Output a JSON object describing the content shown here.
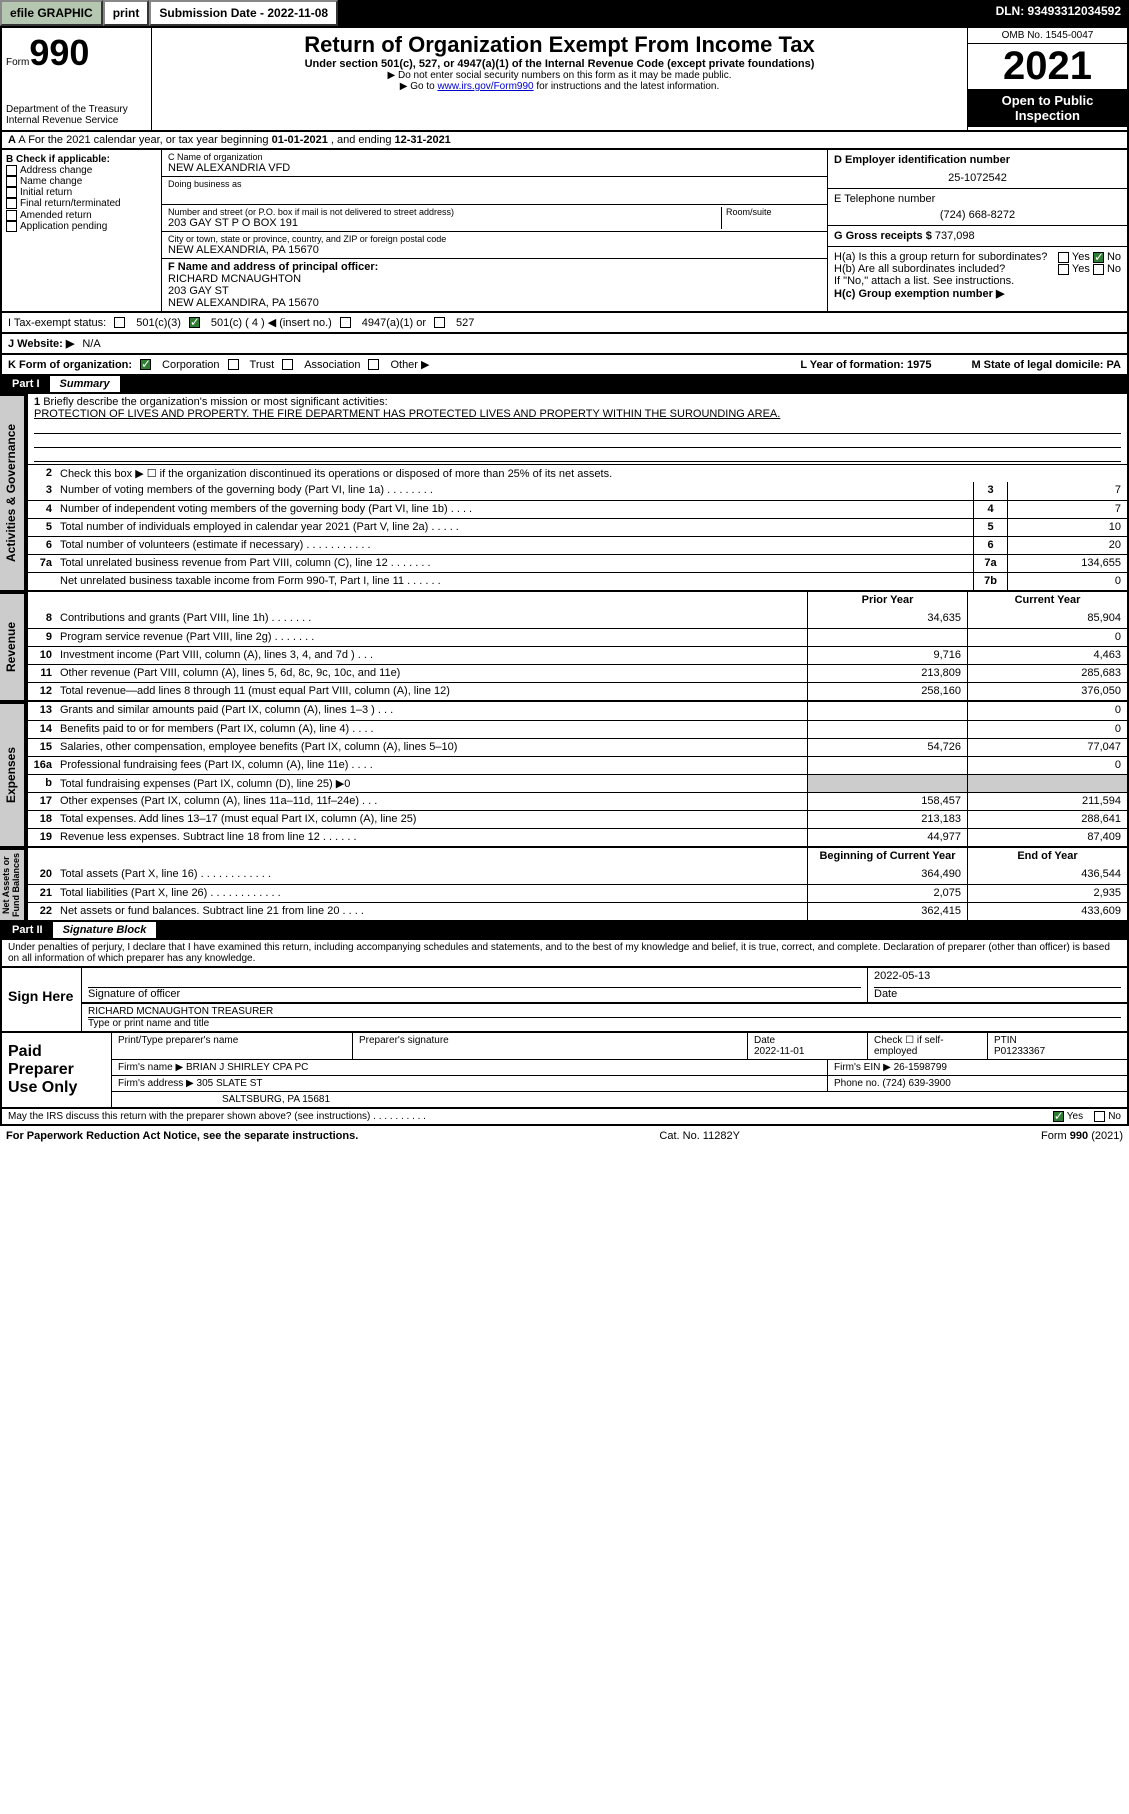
{
  "topbar": {
    "efile_btn": "efile GRAPHIC",
    "print_btn": "print",
    "subdate": "Submission Date - 2022-11-08",
    "dln": "DLN: 93493312034592"
  },
  "header": {
    "form_word": "Form",
    "form_num": "990",
    "dept": "Department of the Treasury\nInternal Revenue Service",
    "title": "Return of Organization Exempt From Income Tax",
    "sub1": "Under section 501(c), 527, or 4947(a)(1) of the Internal Revenue Code (except private foundations)",
    "sub2": "▶ Do not enter social security numbers on this form as it may be made public.",
    "sub3_pre": "▶ Go to ",
    "sub3_link": "www.irs.gov/Form990",
    "sub3_post": " for instructions and the latest information.",
    "omb": "OMB No. 1545-0047",
    "year": "2021",
    "open": "Open to Public Inspection"
  },
  "rowA": {
    "text_pre": "A For the 2021 calendar year, or tax year beginning ",
    "begin": "01-01-2021",
    "mid": "   , and ending ",
    "end": "12-31-2021"
  },
  "B": {
    "hdr": "B Check if applicable:",
    "opts": [
      "Address change",
      "Name change",
      "Initial return",
      "Final return/terminated",
      "Amended return",
      "Application pending"
    ]
  },
  "C": {
    "name_lbl": "C Name of organization",
    "name": "NEW ALEXANDRIA VFD",
    "dba_lbl": "Doing business as",
    "dba": "",
    "addr_lbl": "Number and street (or P.O. box if mail is not delivered to street address)",
    "room_lbl": "Room/suite",
    "addr": "203 GAY ST P O BOX 191",
    "city_lbl": "City or town, state or province, country, and ZIP or foreign postal code",
    "city": "NEW ALEXANDRIA, PA  15670",
    "F_lbl": "F Name and address of principal officer:",
    "F_name": "RICHARD MCNAUGHTON",
    "F_addr1": "203 GAY ST",
    "F_addr2": "NEW ALEXANDIRA, PA  15670"
  },
  "D": {
    "ein_lbl": "D Employer identification number",
    "ein": "25-1072542",
    "tel_lbl": "E Telephone number",
    "tel": "(724) 668-8272",
    "gross_lbl": "G Gross receipts $",
    "gross": "737,098",
    "Ha": "H(a)  Is this a group return for subordinates?",
    "Hb": "H(b)  Are all subordinates included?",
    "Hb_note": "If \"No,\" attach a list. See instructions.",
    "Hc": "H(c)  Group exemption number ▶"
  },
  "I": {
    "lbl": "I   Tax-exempt status:",
    "c3": "501(c)(3)",
    "c": "501(c) ( 4 ) ◀ (insert no.)",
    "a1": "4947(a)(1) or",
    "s527": "527"
  },
  "J": {
    "lbl": "J   Website: ▶",
    "val": "N/A"
  },
  "K": {
    "lbl": "K Form of organization:",
    "opts": [
      "Corporation",
      "Trust",
      "Association",
      "Other ▶"
    ],
    "L": "L Year of formation: 1975",
    "M": "M State of legal domicile: PA"
  },
  "partI": {
    "part": "Part I",
    "title": "Summary"
  },
  "gov": {
    "l1": "Briefly describe the organization's mission or most significant activities:",
    "mission": "PROTECTION OF LIVES AND PROPERTY. THE FIRE DEPARTMENT HAS PROTECTED LIVES AND PROPERTY WITHIN THE SUROUNDING AREA.",
    "l2": "Check this box ▶ ☐  if the organization discontinued its operations or disposed of more than 25% of its net assets.",
    "rows": [
      {
        "n": "3",
        "t": "Number of voting members of the governing body (Part VI, line 1a)  .    .    .    .    .    .    .    .",
        "box": "3",
        "v": "7"
      },
      {
        "n": "4",
        "t": "Number of independent voting members of the governing body (Part VI, line 1b)    .    .    .    .",
        "box": "4",
        "v": "7"
      },
      {
        "n": "5",
        "t": "Total number of individuals employed in calendar year 2021 (Part V, line 2a)   .    .    .    .    .",
        "box": "5",
        "v": "10"
      },
      {
        "n": "6",
        "t": "Total number of volunteers (estimate if necessary)   .    .    .    .    .    .    .    .    .    .    .",
        "box": "6",
        "v": "20"
      },
      {
        "n": "7a",
        "t": "Total unrelated business revenue from Part VIII, column (C), line 12   .    .    .    .    .    .    .",
        "box": "7a",
        "v": "134,655"
      },
      {
        "n": "",
        "t": "Net unrelated business taxable income from Form 990-T, Part I, line 11   .    .    .    .    .    .",
        "box": "7b",
        "v": "0"
      }
    ]
  },
  "rev": {
    "hdr_prior": "Prior Year",
    "hdr_curr": "Current Year",
    "rows": [
      {
        "n": "8",
        "t": "Contributions and grants (Part VIII, line 1h)    .    .    .    .    .    .    .",
        "p": "34,635",
        "c": "85,904"
      },
      {
        "n": "9",
        "t": "Program service revenue (Part VIII, line 2g)    .    .    .    .    .    .    .",
        "p": "",
        "c": "0"
      },
      {
        "n": "10",
        "t": "Investment income (Part VIII, column (A), lines 3, 4, and 7d )   .    .    .",
        "p": "9,716",
        "c": "4,463"
      },
      {
        "n": "11",
        "t": "Other revenue (Part VIII, column (A), lines 5, 6d, 8c, 9c, 10c, and 11e)",
        "p": "213,809",
        "c": "285,683"
      },
      {
        "n": "12",
        "t": "Total revenue—add lines 8 through 11 (must equal Part VIII, column (A), line 12)",
        "p": "258,160",
        "c": "376,050"
      }
    ]
  },
  "exp": {
    "rows": [
      {
        "n": "13",
        "t": "Grants and similar amounts paid (Part IX, column (A), lines 1–3 )   .    .    .",
        "p": "",
        "c": "0"
      },
      {
        "n": "14",
        "t": "Benefits paid to or for members (Part IX, column (A), line 4)   .    .    .    .",
        "p": "",
        "c": "0"
      },
      {
        "n": "15",
        "t": "Salaries, other compensation, employee benefits (Part IX, column (A), lines 5–10)",
        "p": "54,726",
        "c": "77,047"
      },
      {
        "n": "16a",
        "t": "Professional fundraising fees (Part IX, column (A), line 11e)   .    .    .    .",
        "p": "",
        "c": "0"
      },
      {
        "n": "b",
        "t": "Total fundraising expenses (Part IX, column (D), line 25) ▶0",
        "p": "shade",
        "c": "shade"
      },
      {
        "n": "17",
        "t": "Other expenses (Part IX, column (A), lines 11a–11d, 11f–24e)   .    .    .",
        "p": "158,457",
        "c": "211,594"
      },
      {
        "n": "18",
        "t": "Total expenses. Add lines 13–17 (must equal Part IX, column (A), line 25)",
        "p": "213,183",
        "c": "288,641"
      },
      {
        "n": "19",
        "t": "Revenue less expenses. Subtract line 18 from line 12   .    .    .    .    .    .",
        "p": "44,977",
        "c": "87,409"
      }
    ]
  },
  "net": {
    "hdr_begin": "Beginning of Current Year",
    "hdr_end": "End of Year",
    "rows": [
      {
        "n": "20",
        "t": "Total assets (Part X, line 16)   .    .    .    .    .    .    .    .    .    .    .    .",
        "p": "364,490",
        "c": "436,544"
      },
      {
        "n": "21",
        "t": "Total liabilities (Part X, line 26)  .    .    .    .    .    .    .    .    .    .    .    .",
        "p": "2,075",
        "c": "2,935"
      },
      {
        "n": "22",
        "t": "Net assets or fund balances. Subtract line 21 from line 20   .    .    .    .",
        "p": "362,415",
        "c": "433,609"
      }
    ]
  },
  "partII": {
    "part": "Part II",
    "title": "Signature Block"
  },
  "sig": {
    "decl": "Under penalties of perjury, I declare that I have examined this return, including accompanying schedules and statements, and to the best of my knowledge and belief, it is true, correct, and complete. Declaration of preparer (other than officer) is based on all information of which preparer has any knowledge.",
    "here": "Sign Here",
    "sigof": "Signature of officer",
    "date": "2022-05-13",
    "date_lbl": "Date",
    "name": "RICHARD MCNAUGHTON TREASURER",
    "name_lbl": "Type or print name and title"
  },
  "prep": {
    "left": "Paid Preparer Use Only",
    "h": {
      "a": "Print/Type preparer's name",
      "b": "Preparer's signature",
      "c": "Date",
      "d": "Check ☐ if self-employed",
      "e": "PTIN"
    },
    "date": "2022-11-01",
    "ptin": "P01233367",
    "firm_lbl": "Firm's name    ▶",
    "firm": "BRIAN J SHIRLEY CPA PC",
    "ein_lbl": "Firm's EIN ▶",
    "ein": "26-1598799",
    "addr_lbl": "Firm's address ▶",
    "addr1": "305 SLATE ST",
    "addr2": "SALTSBURG, PA  15681",
    "phone_lbl": "Phone no.",
    "phone": "(724) 639-3900"
  },
  "footer": {
    "q": "May the IRS discuss this return with the preparer shown above? (see instructions)    .    .    .    .    .    .    .    .    .    .",
    "yes": "Yes",
    "no": "No"
  },
  "last": {
    "l": "For Paperwork Reduction Act Notice, see the separate instructions.",
    "c": "Cat. No. 11282Y",
    "r": "Form 990 (2021)"
  },
  "vlabels": {
    "gov": "Activities & Governance",
    "rev": "Revenue",
    "exp": "Expenses",
    "net": "Net Assets or Fund Balances"
  }
}
